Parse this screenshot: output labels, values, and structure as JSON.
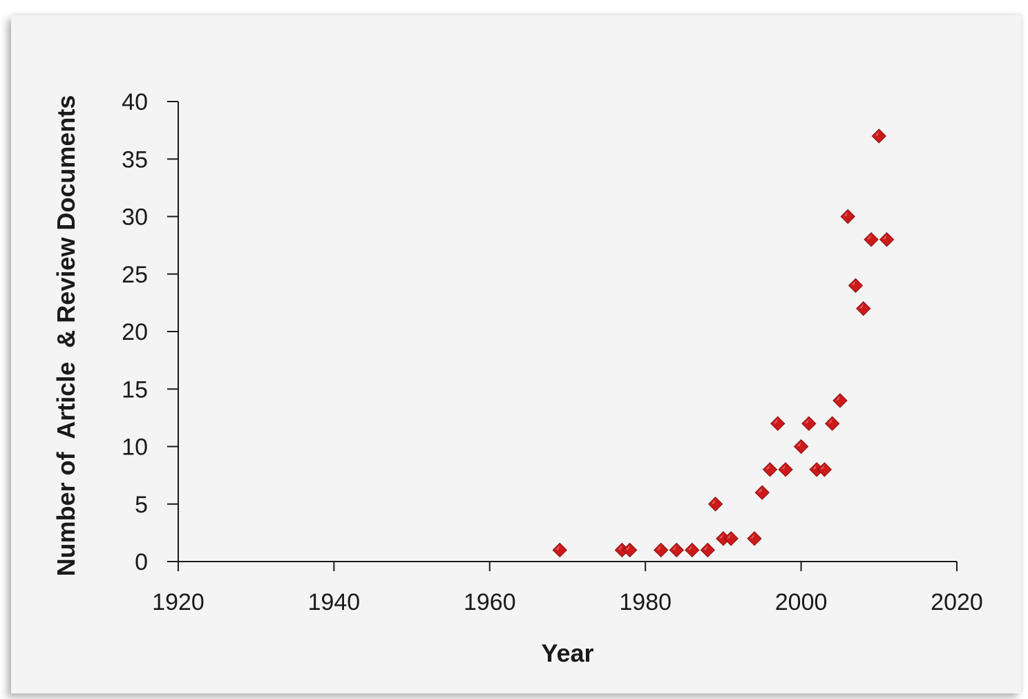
{
  "chart_data": {
    "type": "scatter",
    "title": "",
    "xlabel": "Year",
    "ylabel": "Number of  Article  & Review Documents",
    "xlim": [
      1920,
      2020
    ],
    "ylim": [
      0,
      40
    ],
    "x_ticks": [
      1920,
      1940,
      1960,
      1980,
      2000,
      2020
    ],
    "y_ticks": [
      0,
      5,
      10,
      15,
      20,
      25,
      30,
      35,
      40
    ],
    "grid": false,
    "legend": "none",
    "marker": "diamond",
    "marker_color": "#cc1a1a",
    "points": [
      {
        "x": 1969,
        "y": 1
      },
      {
        "x": 1977,
        "y": 1
      },
      {
        "x": 1978,
        "y": 1
      },
      {
        "x": 1982,
        "y": 1
      },
      {
        "x": 1984,
        "y": 1
      },
      {
        "x": 1986,
        "y": 1
      },
      {
        "x": 1988,
        "y": 1
      },
      {
        "x": 1989,
        "y": 5
      },
      {
        "x": 1990,
        "y": 2
      },
      {
        "x": 1991,
        "y": 2
      },
      {
        "x": 1994,
        "y": 2
      },
      {
        "x": 1995,
        "y": 6
      },
      {
        "x": 1996,
        "y": 8
      },
      {
        "x": 1997,
        "y": 12
      },
      {
        "x": 1998,
        "y": 8
      },
      {
        "x": 2000,
        "y": 10
      },
      {
        "x": 2001,
        "y": 12
      },
      {
        "x": 2002,
        "y": 8
      },
      {
        "x": 2003,
        "y": 8
      },
      {
        "x": 2004,
        "y": 12
      },
      {
        "x": 2005,
        "y": 14
      },
      {
        "x": 2006,
        "y": 30
      },
      {
        "x": 2007,
        "y": 24
      },
      {
        "x": 2008,
        "y": 22
      },
      {
        "x": 2009,
        "y": 28
      },
      {
        "x": 2010,
        "y": 37
      },
      {
        "x": 2011,
        "y": 28
      }
    ]
  }
}
